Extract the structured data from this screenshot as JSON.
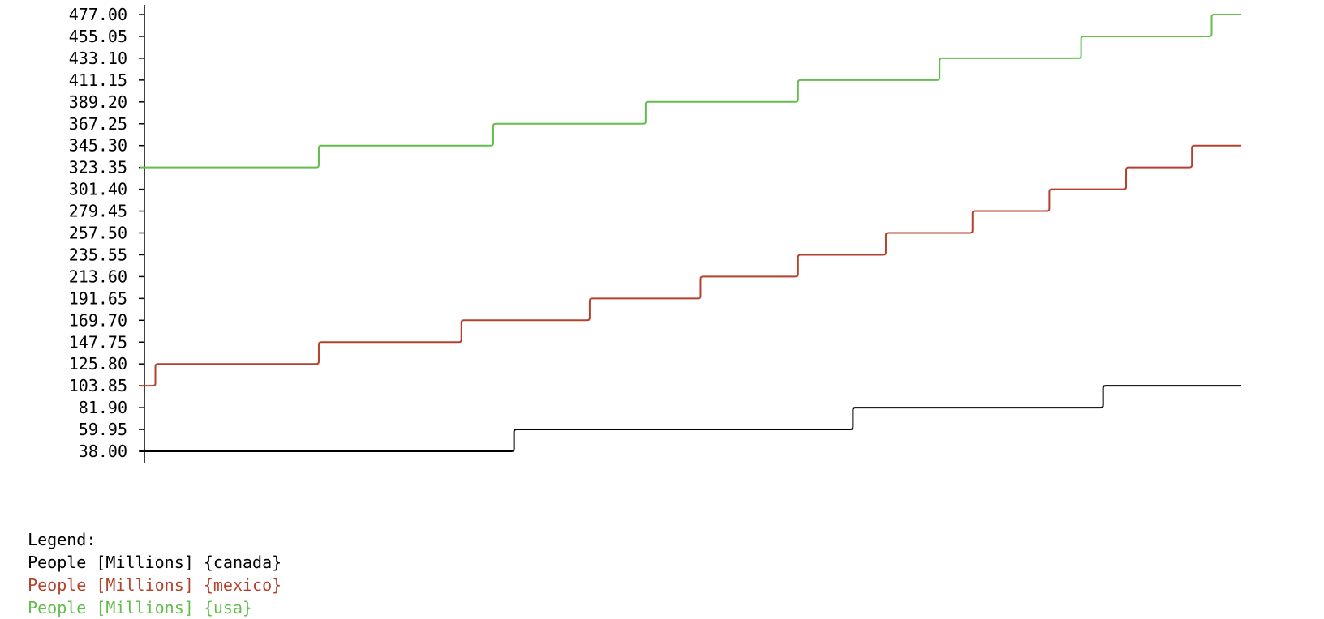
{
  "chart_data": {
    "type": "line",
    "step": true,
    "y_ticks": [
      "477.00",
      "455.05",
      "433.10",
      "411.15",
      "389.20",
      "367.25",
      "345.30",
      "323.35",
      "301.40",
      "279.45",
      "257.50",
      "235.55",
      "213.60",
      "191.65",
      "169.70",
      "147.75",
      "125.80",
      "103.85",
      "81.90",
      "59.95",
      "38.00"
    ],
    "ylim": [
      38.0,
      477.0
    ],
    "xlim": [
      0,
      100
    ],
    "grid": false,
    "legend": {
      "title": "Legend:",
      "position": "bottom"
    },
    "series": [
      {
        "name": "People [Millions] {canada}",
        "color": "#000000",
        "x": [
          0,
          33.7,
          64.6,
          87.4,
          100
        ],
        "y": [
          38.0,
          59.95,
          81.9,
          103.85,
          103.85
        ]
      },
      {
        "name": "People [Millions] {mexico}",
        "color": "#b5402b",
        "x": [
          0,
          1.0,
          15.9,
          28.9,
          40.6,
          50.7,
          59.6,
          67.6,
          75.5,
          82.5,
          89.5,
          95.5,
          100
        ],
        "y": [
          103.85,
          125.8,
          147.75,
          169.7,
          191.65,
          213.6,
          235.55,
          257.5,
          279.45,
          301.4,
          323.35,
          345.3,
          345.3
        ]
      },
      {
        "name": "People [Millions] {usa}",
        "color": "#63bd4a",
        "x": [
          0,
          15.9,
          31.8,
          45.7,
          59.6,
          72.5,
          85.4,
          97.3,
          100
        ],
        "y": [
          323.35,
          345.3,
          367.25,
          389.2,
          411.15,
          433.1,
          455.05,
          477.0,
          477.0
        ]
      }
    ]
  }
}
